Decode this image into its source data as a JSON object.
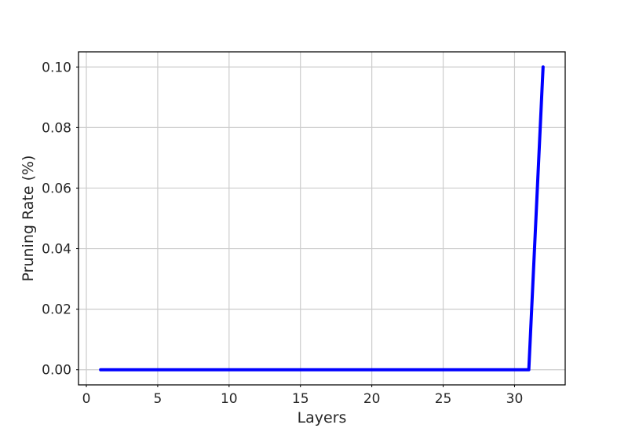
{
  "chart_data": {
    "type": "line",
    "title": "",
    "xlabel": "Layers",
    "ylabel": "Pruning Rate (%)",
    "xlim": [
      -0.55,
      33.55
    ],
    "ylim": [
      -0.005,
      0.105
    ],
    "xticks": [
      0,
      5,
      10,
      15,
      20,
      25,
      30
    ],
    "xtick_labels": [
      "0",
      "5",
      "10",
      "15",
      "20",
      "25",
      "30"
    ],
    "yticks": [
      0.0,
      0.02,
      0.04,
      0.06,
      0.08,
      0.1
    ],
    "ytick_labels": [
      "0.00",
      "0.02",
      "0.04",
      "0.06",
      "0.08",
      "0.10"
    ],
    "grid": true,
    "legend": "none",
    "series": [
      {
        "color": "#0000ff",
        "x": [
          1,
          2,
          3,
          4,
          5,
          6,
          7,
          8,
          9,
          10,
          11,
          12,
          13,
          14,
          15,
          16,
          17,
          18,
          19,
          20,
          21,
          22,
          23,
          24,
          25,
          26,
          27,
          28,
          29,
          30,
          31,
          32
        ],
        "y": [
          0,
          0,
          0,
          0,
          0,
          0,
          0,
          0,
          0,
          0,
          0,
          0,
          0,
          0,
          0,
          0,
          0,
          0,
          0,
          0,
          0,
          0,
          0,
          0,
          0,
          0,
          0,
          0,
          0,
          0,
          0,
          0.1
        ]
      }
    ]
  }
}
